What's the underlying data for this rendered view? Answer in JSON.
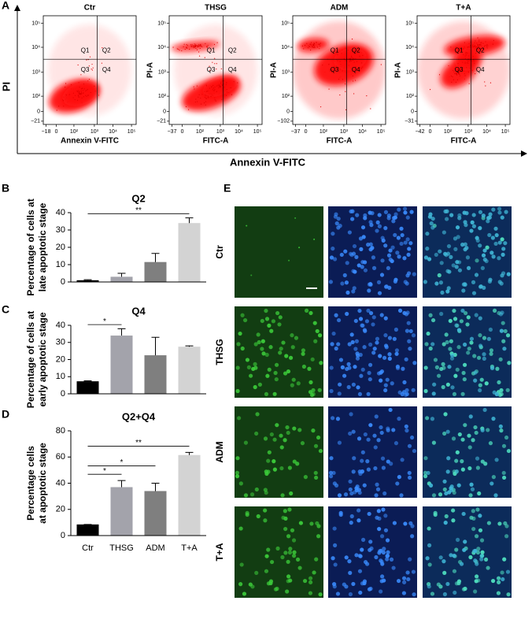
{
  "panel_labels": [
    "A",
    "B",
    "C",
    "D",
    "E"
  ],
  "flow": {
    "y_axis_label": "PI",
    "x_axis_label": "Annexin V-FITC",
    "plots": [
      {
        "title": "Ctr",
        "x_label": "Annexin V-FITC",
        "quadrants": [
          "Q1",
          "Q2",
          "Q3",
          "Q4"
        ],
        "yticks": [
          "10⁵",
          "10⁴",
          "10³",
          "10²",
          "0",
          "−21"
        ],
        "xticks": [
          "−18",
          "0",
          "10²",
          "10³",
          "10⁴",
          "10⁵"
        ]
      },
      {
        "title": "THSG",
        "x_label": "FITC-A",
        "y_label": "PI-A",
        "quadrants": [
          "Q1",
          "Q2",
          "Q3",
          "Q4"
        ],
        "yticks": [
          "10⁵",
          "10⁴",
          "10³",
          "10²",
          "0",
          "−21"
        ],
        "xticks": [
          "−37",
          "0",
          "10²",
          "10³",
          "10⁴",
          "10⁵"
        ]
      },
      {
        "title": "ADM",
        "x_label": "FITC-A",
        "y_label": "PI-A",
        "quadrants": [
          "Q1",
          "Q2",
          "Q3",
          "Q4"
        ],
        "yticks": [
          "10⁵",
          "10⁴",
          "10³",
          "10²",
          "0",
          "−102"
        ],
        "xticks": [
          "−37",
          "0",
          "10²",
          "10³",
          "10⁴",
          "10⁵"
        ]
      },
      {
        "title": "T+A",
        "x_label": "FITC-A",
        "y_label": "PI-A",
        "quadrants": [
          "Q1",
          "Q2",
          "Q3",
          "Q4"
        ],
        "yticks": [
          "10⁵",
          "10⁴",
          "10³",
          "10²",
          "0",
          "−31"
        ],
        "xticks": [
          "−42",
          "0",
          "10²",
          "10³",
          "10⁴",
          "10⁵"
        ]
      }
    ]
  },
  "chart_data": [
    {
      "type": "bar",
      "title": "Q2",
      "ylabel": [
        "Percentage of cells at",
        "late apoptotic stage"
      ],
      "categories": [
        null,
        null,
        null,
        null
      ],
      "values": [
        1,
        3,
        11.5,
        34
      ],
      "errors": [
        0.3,
        2,
        5,
        3
      ],
      "colors": [
        "#000000",
        "#a3a3ab",
        "#7f7f7f",
        "#d3d3d3"
      ],
      "ylim": [
        0,
        40
      ],
      "yticks": [
        0,
        10,
        20,
        30,
        40
      ],
      "annotations": [
        {
          "text": "**",
          "pair": [
            0,
            3
          ]
        }
      ]
    },
    {
      "type": "bar",
      "title": "Q4",
      "ylabel": [
        "Percentage of cells at",
        "early apoptotic stage"
      ],
      "categories": [
        null,
        null,
        null,
        null
      ],
      "values": [
        7.3,
        34,
        22.5,
        27.5
      ],
      "errors": [
        0.3,
        4,
        10.5,
        0.5
      ],
      "colors": [
        "#000000",
        "#a3a3ab",
        "#7f7f7f",
        "#d3d3d3"
      ],
      "ylim": [
        0,
        40
      ],
      "yticks": [
        0,
        10,
        20,
        30,
        40
      ],
      "annotations": [
        {
          "text": "*",
          "pair": [
            0,
            1
          ]
        }
      ]
    },
    {
      "type": "bar",
      "title": "Q2+Q4",
      "ylabel": [
        "Percentage cells",
        "at apoptotic stage"
      ],
      "categories": [
        "Ctr",
        "THSG",
        "ADM",
        "T+A"
      ],
      "values": [
        8.5,
        37,
        34,
        61.5
      ],
      "errors": [
        0,
        5,
        6,
        2
      ],
      "colors": [
        "#000000",
        "#a3a3ab",
        "#7f7f7f",
        "#d3d3d3"
      ],
      "ylim": [
        0,
        80
      ],
      "yticks": [
        0,
        20,
        40,
        60,
        80
      ],
      "annotations": [
        {
          "text": "*",
          "pair": [
            0,
            1
          ]
        },
        {
          "text": "*",
          "pair": [
            0,
            2
          ]
        },
        {
          "text": "**",
          "pair": [
            0,
            3
          ]
        }
      ]
    }
  ],
  "images": {
    "rows": [
      "Ctr",
      "THSG",
      "ADM",
      "T+A"
    ]
  }
}
